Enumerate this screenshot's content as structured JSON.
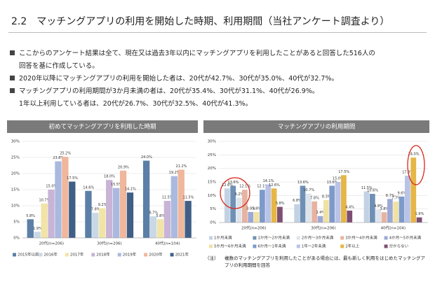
{
  "title": "2.2　マッチングアプリの利用を開始した時期、利用期間（当社アンケート調査より）",
  "bullets": [
    [
      "ここからのアンケート結果は全て、現在又は過去3年以内にマッチングアプリを利用したことがあると回答した516人の",
      "回答を基に作成している。"
    ],
    [
      "2020年以降にマッチングアプリの利用を開始した者は、20代が42.7%、30代が35.0%、40代が32.7%。"
    ],
    [
      "マッチングアプリの利用期間が3か月未満の者は、20代が35.4%、30代が31.1%、40代が26.9%。",
      "1年以上利用している者は、20代が26.7%、30代が32.5%、40代が41.3%。"
    ]
  ],
  "note": {
    "marker": "（注）",
    "text": "複数のマッチングアプリを利用したことがある場合には、最も新しく利用をはじめたマッチングアプリの利用期間を回答"
  },
  "chart_data": [
    {
      "type": "bar",
      "title": "初めてマッチングアプリを利用した時期",
      "categories": [
        "20代(n=206)",
        "30代(n=206)",
        "40代(n=104)"
      ],
      "ylim": [
        0,
        30
      ],
      "yticks": [
        {
          "value": 0,
          "label": "0%"
        },
        {
          "value": 5,
          "label": "5%"
        },
        {
          "value": 10,
          "label": "10%"
        },
        {
          "value": 15,
          "label": "15%"
        },
        {
          "value": 20,
          "label": "20%"
        },
        {
          "value": 25,
          "label": "25%"
        },
        {
          "value": 30,
          "label": "30%"
        }
      ],
      "legend": "bottom",
      "series": [
        {
          "name": "2015年以前",
          "color": "#5b7fa6",
          "values": [
            5.8,
            14.6,
            24.0
          ],
          "value_labels": [
            "5.8%",
            "14.6%",
            "24.0%"
          ]
        },
        {
          "name": "2016年",
          "color": "#c8d8e6",
          "values": [
            1.9,
            7.8,
            6.7
          ],
          "value_labels": [
            "1.9%",
            "7.8%",
            "6.7%"
          ]
        },
        {
          "name": "2017年",
          "color": "#f1e4a6",
          "values": [
            10.7,
            9.2,
            5.8
          ],
          "value_labels": [
            "10.7%",
            "9.2%",
            "5.8%"
          ]
        },
        {
          "name": "2018年",
          "color": "#c9b3d6",
          "values": [
            15.0,
            18.0,
            11.5
          ],
          "value_labels": [
            "15.0%",
            "18.0%",
            "11.5%"
          ]
        },
        {
          "name": "2019年",
          "color": "#aab9df",
          "values": [
            23.8,
            15.5,
            19.2
          ],
          "value_labels": [
            "23.8%",
            "15.5%",
            "19.2%"
          ]
        },
        {
          "name": "2020年",
          "color": "#efb79c",
          "values": [
            25.2,
            20.9,
            21.2
          ],
          "value_labels": [
            "25.2%",
            "20.9%",
            "21.2%"
          ]
        },
        {
          "name": "2021年",
          "color": "#3f5f86",
          "values": [
            17.5,
            14.1,
            11.5
          ],
          "value_labels": [
            "17.5%",
            "14.1%",
            "11.5%"
          ]
        }
      ]
    },
    {
      "type": "bar",
      "title": "マッチングアプリの利用期間",
      "categories": [
        "20代(n=206)",
        "30代(n=206)",
        "40代(n=104)"
      ],
      "ylim": [
        0,
        30
      ],
      "yticks": [
        {
          "value": 0,
          "label": "0%"
        },
        {
          "value": 5,
          "label": "5%"
        },
        {
          "value": 10,
          "label": "10%"
        },
        {
          "value": 15,
          "label": "15%"
        },
        {
          "value": 20,
          "label": "20%"
        },
        {
          "value": 25,
          "label": "25%"
        },
        {
          "value": 30,
          "label": "30%"
        }
      ],
      "legend": "bottom",
      "series": [
        {
          "name": "1か月未満",
          "color": "#c3d2e3",
          "values": [
            12.6,
            6.8,
            11.5
          ],
          "value_labels": [
            "12.6%",
            "6.8%",
            "11.5%"
          ]
        },
        {
          "name": "1か月～2か月未満",
          "color": "#6f90b5",
          "values": [
            13.6,
            13.6,
            10.6
          ],
          "value_labels": [
            "13.6%",
            "13.6%",
            "10.6%"
          ]
        },
        {
          "name": "2か月～3か月未満",
          "color": "#dde4ec",
          "values": [
            9.2,
            10.7,
            4.8
          ],
          "value_labels": [
            "9.2%",
            "10.7%",
            "4.8%"
          ]
        },
        {
          "name": "3か月～4か月未満",
          "color": "#e7b3a0",
          "values": [
            12.1,
            7.8,
            3.8
          ],
          "value_labels": [
            "12.1%",
            "7.8%",
            "3.8%"
          ]
        },
        {
          "name": "4か月～5か月未満",
          "color": "#9ca9d6",
          "values": [
            3.9,
            2.4,
            8.7
          ],
          "value_labels": [
            "3.9%",
            "2.4%",
            "8.7%"
          ]
        },
        {
          "name": "5か月～6か月未満",
          "color": "#f1e2a2",
          "values": [
            3.9,
            8.3,
            7.7
          ],
          "value_labels": [
            "3.9%",
            "8.3%",
            "7.7%"
          ]
        },
        {
          "name": "6か月～1年未満",
          "color": "#7d9acb",
          "values": [
            12.1,
            13.6,
            9.6
          ],
          "value_labels": [
            "12.1%",
            "13.6%",
            "9.6%"
          ]
        },
        {
          "name": "1年～2年未満",
          "color": "#b9c3e7",
          "values": [
            14.1,
            15.0,
            17.3
          ],
          "value_labels": [
            "14.1%",
            "15.0%",
            "17.3%"
          ]
        },
        {
          "name": "2年以上",
          "color": "#e6b646",
          "values": [
            12.6,
            17.5,
            24.0
          ],
          "value_labels": [
            "12.6%",
            "17.5%",
            "24.0%"
          ]
        },
        {
          "name": "分からない",
          "color": "#7e4f72",
          "values": [
            5.8,
            4.4,
            1.9
          ],
          "value_labels": [
            "5.8%",
            "4.4%",
            "1.9%"
          ]
        }
      ]
    }
  ]
}
